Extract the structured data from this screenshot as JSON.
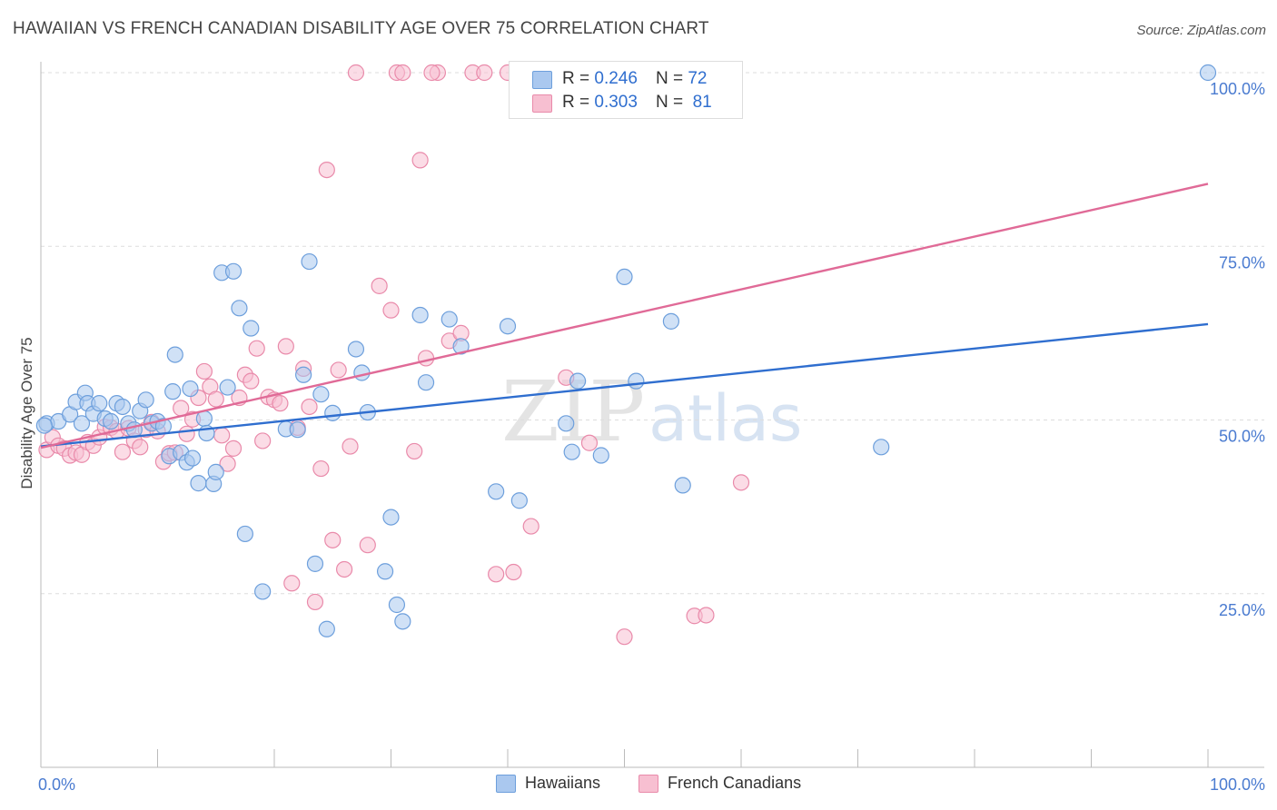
{
  "header": {
    "title": "HAWAIIAN VS FRENCH CANADIAN DISABILITY AGE OVER 75 CORRELATION CHART",
    "source": "Source: ZipAtlas.com"
  },
  "legend_top": {
    "rows": [
      {
        "r_label": "R =",
        "r_value": "0.246",
        "n_label": "N =",
        "n_value": "72"
      },
      {
        "r_label": "R =",
        "r_value": "0.303",
        "n_label": "N =",
        "n_value": "81"
      }
    ]
  },
  "legend_bottom": [
    "Hawaiians",
    "French Canadians"
  ],
  "watermark": {
    "zip": "ZIP",
    "atlas": "atlas"
  },
  "colors": {
    "hawaiians_fill": "#aac8ef",
    "hawaiians_stroke": "#6d9fdc",
    "hawaiians_line": "#2f6ecf",
    "french_fill": "#f7bfd1",
    "french_stroke": "#e98aaa",
    "french_line": "#e06a97",
    "tick_label": "#4a7bd0",
    "grid": "#dddddd"
  },
  "chart_data": {
    "type": "scatter",
    "title": "HAWAIIAN VS FRENCH CANADIAN DISABILITY AGE OVER 75 CORRELATION CHART",
    "xlabel": "",
    "ylabel": "Disability Age Over 75",
    "xlim": [
      0,
      100
    ],
    "ylim": [
      0,
      100
    ],
    "x_tick_labels": [
      "0.0%",
      "100.0%"
    ],
    "y_tick_labels": [
      "25.0%",
      "50.0%",
      "75.0%",
      "100.0%"
    ],
    "y_ticks": [
      25,
      50,
      75,
      100
    ],
    "grid": "horizontal dashed",
    "legend": "top-center",
    "series": [
      {
        "name": "Hawaiians",
        "r": 0.246,
        "n": 72,
        "trend": {
          "x0": 0,
          "y0": 46.2,
          "x1": 100,
          "y1": 63.8
        },
        "points": [
          [
            0.5,
            49.5
          ],
          [
            1.5,
            49.8
          ],
          [
            2.5,
            50.8
          ],
          [
            3,
            52.6
          ],
          [
            3.5,
            49.5
          ],
          [
            3.8,
            53.9
          ],
          [
            4,
            52.4
          ],
          [
            4.5,
            50.9
          ],
          [
            5,
            52.4
          ],
          [
            5.5,
            50.2
          ],
          [
            6,
            49.8
          ],
          [
            6.5,
            52.4
          ],
          [
            7,
            51.9
          ],
          [
            7.5,
            49.5
          ],
          [
            8,
            48.6
          ],
          [
            8.5,
            51.3
          ],
          [
            9,
            52.9
          ],
          [
            9.5,
            49.5
          ],
          [
            10,
            49.8
          ],
          [
            10.5,
            49.1
          ],
          [
            11,
            44.8
          ],
          [
            11.3,
            54.1
          ],
          [
            11.5,
            59.4
          ],
          [
            12,
            45.3
          ],
          [
            12.5,
            43.9
          ],
          [
            12.8,
            54.5
          ],
          [
            13,
            44.5
          ],
          [
            13.5,
            40.9
          ],
          [
            14,
            50.2
          ],
          [
            14.2,
            48.1
          ],
          [
            14.8,
            40.8
          ],
          [
            15,
            42.5
          ],
          [
            15.5,
            71.2
          ],
          [
            16,
            54.7
          ],
          [
            16.5,
            71.4
          ],
          [
            17,
            66.1
          ],
          [
            17.5,
            33.6
          ],
          [
            18,
            63.2
          ],
          [
            19,
            25.3
          ],
          [
            21,
            48.7
          ],
          [
            22,
            48.6
          ],
          [
            22.5,
            56.5
          ],
          [
            23,
            72.8
          ],
          [
            23.5,
            29.3
          ],
          [
            24,
            53.7
          ],
          [
            24.5,
            19.9
          ],
          [
            25,
            51.0
          ],
          [
            27,
            60.2
          ],
          [
            27.5,
            56.8
          ],
          [
            28,
            51.1
          ],
          [
            29.5,
            28.2
          ],
          [
            30,
            36.0
          ],
          [
            30.5,
            23.4
          ],
          [
            31,
            21.0
          ],
          [
            32.5,
            65.1
          ],
          [
            33,
            55.4
          ],
          [
            35,
            64.5
          ],
          [
            36,
            60.6
          ],
          [
            39,
            39.7
          ],
          [
            40,
            63.5
          ],
          [
            41,
            38.4
          ],
          [
            45,
            49.5
          ],
          [
            45.5,
            45.4
          ],
          [
            46,
            55.6
          ],
          [
            48,
            44.9
          ],
          [
            50,
            70.6
          ],
          [
            51,
            55.6
          ],
          [
            54,
            64.2
          ],
          [
            55,
            40.6
          ],
          [
            72,
            46.1
          ],
          [
            100,
            100.0
          ],
          [
            0.3,
            49.2
          ]
        ]
      },
      {
        "name": "French Canadians",
        "r": 0.303,
        "n": 81,
        "trend": {
          "x0": 0,
          "y0": 46.0,
          "x1": 100,
          "y1": 84.0
        },
        "points": [
          [
            0.5,
            45.7
          ],
          [
            1,
            47.5
          ],
          [
            1.5,
            46.3
          ],
          [
            2,
            45.9
          ],
          [
            2.5,
            44.9
          ],
          [
            3,
            45.3
          ],
          [
            3.5,
            45.0
          ],
          [
            4,
            46.8
          ],
          [
            4.5,
            46.3
          ],
          [
            5,
            47.5
          ],
          [
            5.5,
            49.0
          ],
          [
            6,
            48.9
          ],
          [
            6.5,
            48.4
          ],
          [
            7,
            45.4
          ],
          [
            7.5,
            48.8
          ],
          [
            8,
            47.0
          ],
          [
            8.5,
            46.1
          ],
          [
            9,
            48.6
          ],
          [
            9.5,
            49.7
          ],
          [
            10,
            48.4
          ],
          [
            10.5,
            44.0
          ],
          [
            11,
            45.2
          ],
          [
            11.5,
            45.3
          ],
          [
            12,
            51.7
          ],
          [
            12.5,
            48.0
          ],
          [
            13,
            50.1
          ],
          [
            13.5,
            53.2
          ],
          [
            14,
            57.0
          ],
          [
            14.5,
            54.8
          ],
          [
            15,
            53.0
          ],
          [
            15.5,
            47.8
          ],
          [
            16,
            43.7
          ],
          [
            16.5,
            45.9
          ],
          [
            17,
            53.2
          ],
          [
            17.5,
            56.5
          ],
          [
            18,
            55.6
          ],
          [
            18.5,
            60.3
          ],
          [
            19,
            47.0
          ],
          [
            19.5,
            53.3
          ],
          [
            20,
            52.9
          ],
          [
            20.5,
            52.4
          ],
          [
            21,
            60.6
          ],
          [
            21.5,
            26.5
          ],
          [
            22,
            48.9
          ],
          [
            22.5,
            57.4
          ],
          [
            23,
            51.9
          ],
          [
            23.5,
            23.8
          ],
          [
            24,
            43.0
          ],
          [
            24.5,
            86.0
          ],
          [
            25,
            32.7
          ],
          [
            25.5,
            57.2
          ],
          [
            26,
            28.5
          ],
          [
            26.5,
            46.2
          ],
          [
            27,
            100.0
          ],
          [
            28,
            32.0
          ],
          [
            29,
            69.3
          ],
          [
            30,
            65.8
          ],
          [
            30.5,
            100.0
          ],
          [
            31,
            100.0
          ],
          [
            32,
            45.5
          ],
          [
            32.5,
            87.4
          ],
          [
            33,
            58.9
          ],
          [
            34,
            100.0
          ],
          [
            35,
            61.4
          ],
          [
            36,
            62.5
          ],
          [
            37,
            100.0
          ],
          [
            38,
            100.0
          ],
          [
            39,
            27.8
          ],
          [
            40,
            100.0
          ],
          [
            40.5,
            28.1
          ],
          [
            42,
            34.7
          ],
          [
            45,
            56.1
          ],
          [
            46,
            100.0
          ],
          [
            47,
            46.7
          ],
          [
            50,
            18.8
          ],
          [
            53,
            100.0
          ],
          [
            55,
            100.0
          ],
          [
            56,
            21.8
          ],
          [
            57,
            21.9
          ],
          [
            60,
            41.0
          ],
          [
            33.5,
            100.0
          ]
        ]
      }
    ]
  }
}
